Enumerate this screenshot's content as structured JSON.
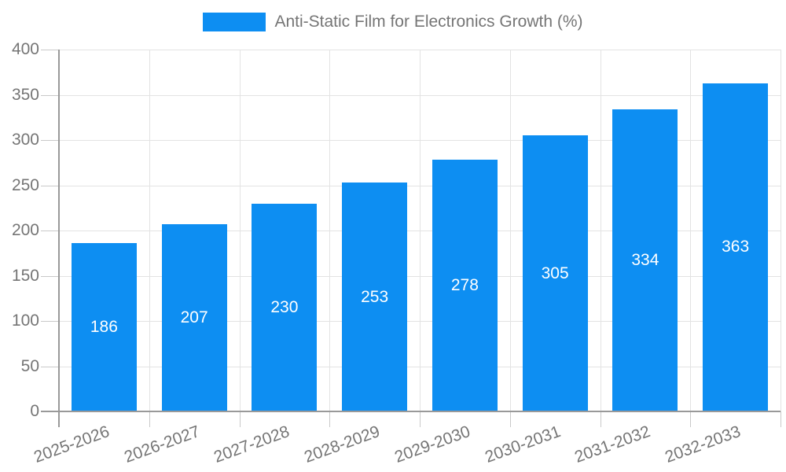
{
  "legend": {
    "label": "Anti-Static Film for Electronics Growth (%)"
  },
  "chart_data": {
    "type": "bar",
    "title": "Anti-Static Film for Electronics Growth (%)",
    "categories": [
      "2025-2026",
      "2026-2027",
      "2027-2028",
      "2028-2029",
      "2029-2030",
      "2030-2031",
      "2031-2032",
      "2032-2033"
    ],
    "series": [
      {
        "name": "Anti-Static Film for Electronics Growth (%)",
        "values": [
          186,
          207,
          230,
          253,
          278,
          305,
          334,
          363
        ]
      }
    ],
    "xlabel": "",
    "ylabel": "",
    "ylim": [
      0,
      400
    ],
    "yticks": [
      0,
      50,
      100,
      150,
      200,
      250,
      300,
      350,
      400
    ],
    "grid": true,
    "legend_position": "top",
    "bar_color": "#0d8ef2",
    "bar_label_color": "#ffffff",
    "axis_text_color": "#757575",
    "axis_line_color": "#999999",
    "gridline_color": "#e3e3e3"
  }
}
